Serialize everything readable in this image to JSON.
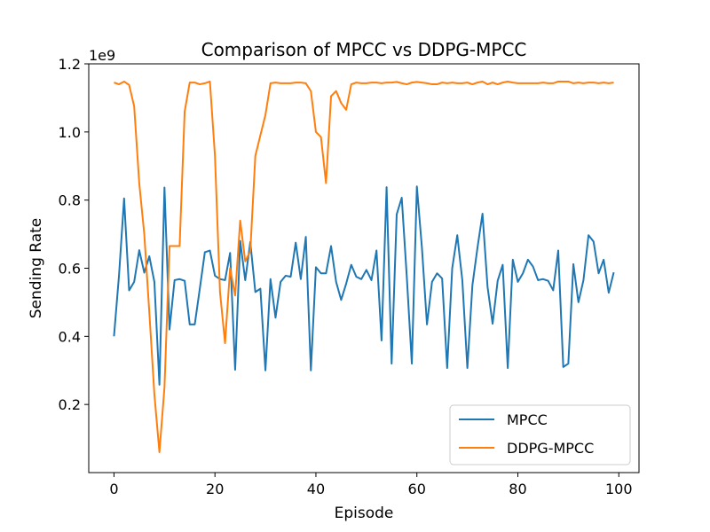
{
  "chart_data": {
    "type": "line",
    "title": "Comparison of MPCC vs DDPG-MPCC",
    "xlabel": "Episode",
    "ylabel": "Sending Rate",
    "y_scale_text": "1e9",
    "y_multiplier": 1000000000,
    "xlim": [
      -5,
      104
    ],
    "ylim": [
      0,
      1.2
    ],
    "x_ticks": [
      0,
      20,
      40,
      60,
      80,
      100
    ],
    "y_ticks": [
      0.2,
      0.4,
      0.6,
      0.8,
      1.0,
      1.2
    ],
    "y_tick_labels": [
      "0.2",
      "0.4",
      "0.6",
      "0.8",
      "1.0",
      "1.2"
    ],
    "grid": false,
    "legend": {
      "position": "lower right",
      "entries": [
        "MPCC",
        "DDPG-MPCC"
      ]
    },
    "x": [
      0,
      1,
      2,
      3,
      4,
      5,
      6,
      7,
      8,
      9,
      10,
      11,
      12,
      13,
      14,
      15,
      16,
      17,
      18,
      19,
      20,
      21,
      22,
      23,
      24,
      25,
      26,
      27,
      28,
      29,
      30,
      31,
      32,
      33,
      34,
      35,
      36,
      37,
      38,
      39,
      40,
      41,
      42,
      43,
      44,
      45,
      46,
      47,
      48,
      49,
      50,
      51,
      52,
      53,
      54,
      55,
      56,
      57,
      58,
      59,
      60,
      61,
      62,
      63,
      64,
      65,
      66,
      67,
      68,
      69,
      70,
      71,
      72,
      73,
      74,
      75,
      76,
      77,
      78,
      79,
      80,
      81,
      82,
      83,
      84,
      85,
      86,
      87,
      88,
      89,
      90,
      91,
      92,
      93,
      94,
      95,
      96,
      97,
      98,
      99
    ],
    "series": [
      {
        "name": "MPCC",
        "color": "#1f77b4",
        "values": [
          0.4,
          0.58,
          0.805,
          0.535,
          0.56,
          0.653,
          0.587,
          0.635,
          0.56,
          0.258,
          0.837,
          0.42,
          0.565,
          0.568,
          0.563,
          0.435,
          0.435,
          0.54,
          0.647,
          0.652,
          0.578,
          0.568,
          0.565,
          0.645,
          0.302,
          0.68,
          0.565,
          0.677,
          0.53,
          0.54,
          0.3,
          0.568,
          0.455,
          0.56,
          0.578,
          0.575,
          0.675,
          0.568,
          0.692,
          0.3,
          0.603,
          0.585,
          0.585,
          0.665,
          0.56,
          0.507,
          0.555,
          0.61,
          0.575,
          0.568,
          0.595,
          0.565,
          0.652,
          0.388,
          0.838,
          0.32,
          0.758,
          0.807,
          0.575,
          0.32,
          0.84,
          0.66,
          0.435,
          0.56,
          0.585,
          0.57,
          0.307,
          0.6,
          0.697,
          0.565,
          0.307,
          0.55,
          0.66,
          0.76,
          0.545,
          0.437,
          0.563,
          0.61,
          0.307,
          0.625,
          0.56,
          0.585,
          0.625,
          0.605,
          0.565,
          0.568,
          0.563,
          0.535,
          0.652,
          0.31,
          0.32,
          0.612,
          0.5,
          0.565,
          0.697,
          0.678,
          0.585,
          0.625,
          0.528,
          0.588
        ]
      },
      {
        "name": "DDPG-MPCC",
        "color": "#ff7f0e",
        "values": [
          1.145,
          1.14,
          1.148,
          1.138,
          1.075,
          0.85,
          0.7,
          0.47,
          0.23,
          0.06,
          0.25,
          0.665,
          0.665,
          0.665,
          1.06,
          1.145,
          1.145,
          1.14,
          1.143,
          1.148,
          0.93,
          0.53,
          0.38,
          0.6,
          0.52,
          0.74,
          0.62,
          0.65,
          0.93,
          0.99,
          1.05,
          1.143,
          1.145,
          1.143,
          1.143,
          1.143,
          1.145,
          1.145,
          1.143,
          1.12,
          1.0,
          0.985,
          0.85,
          1.105,
          1.12,
          1.085,
          1.065,
          1.14,
          1.145,
          1.143,
          1.143,
          1.145,
          1.145,
          1.143,
          1.145,
          1.145,
          1.147,
          1.143,
          1.14,
          1.145,
          1.147,
          1.145,
          1.143,
          1.14,
          1.14,
          1.145,
          1.143,
          1.145,
          1.143,
          1.143,
          1.145,
          1.14,
          1.145,
          1.148,
          1.14,
          1.145,
          1.14,
          1.145,
          1.148,
          1.145,
          1.143,
          1.143,
          1.143,
          1.143,
          1.143,
          1.145,
          1.143,
          1.143,
          1.148,
          1.148,
          1.148,
          1.143,
          1.145,
          1.143,
          1.145,
          1.145,
          1.143,
          1.145,
          1.143,
          1.145
        ]
      }
    ]
  }
}
